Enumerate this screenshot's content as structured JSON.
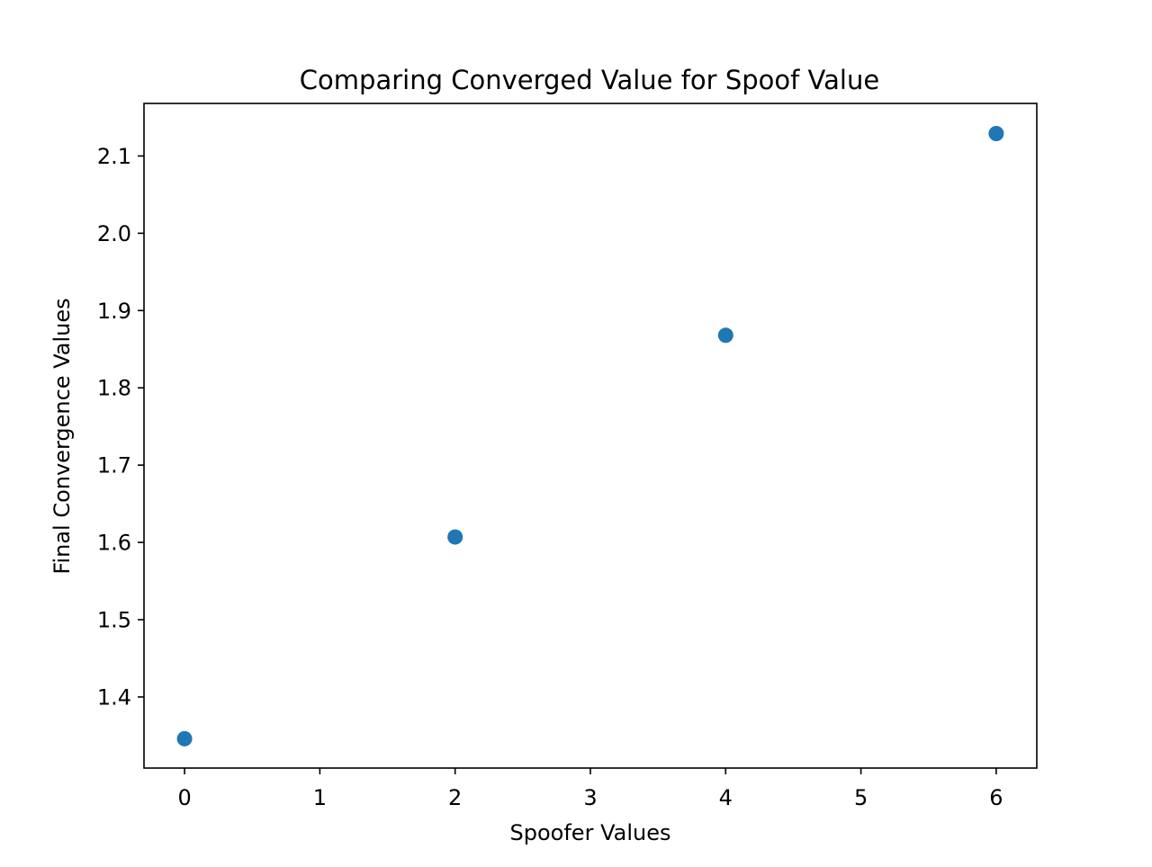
{
  "chart_data": {
    "type": "scatter",
    "title": "Comparing Converged Value for Spoof Value",
    "xlabel": "Spoofer Values",
    "ylabel": "Final Convergence Values",
    "x": [
      0,
      2,
      4,
      6
    ],
    "y": [
      1.346,
      1.607,
      1.868,
      2.129
    ],
    "xlim": [
      -0.3,
      6.3
    ],
    "ylim": [
      1.308,
      2.168
    ],
    "xticks": [
      0,
      1,
      2,
      3,
      4,
      5,
      6
    ],
    "xtick_labels": [
      "0",
      "1",
      "2",
      "3",
      "4",
      "5",
      "6"
    ],
    "yticks": [
      1.4,
      1.5,
      1.6,
      1.7,
      1.8,
      1.9,
      2.0,
      2.1
    ],
    "ytick_labels": [
      "1.4",
      "1.5",
      "1.6",
      "1.7",
      "1.8",
      "1.9",
      "2.0",
      "2.1"
    ],
    "marker_color": "#1f77b4",
    "grid": false,
    "legend": "none"
  }
}
